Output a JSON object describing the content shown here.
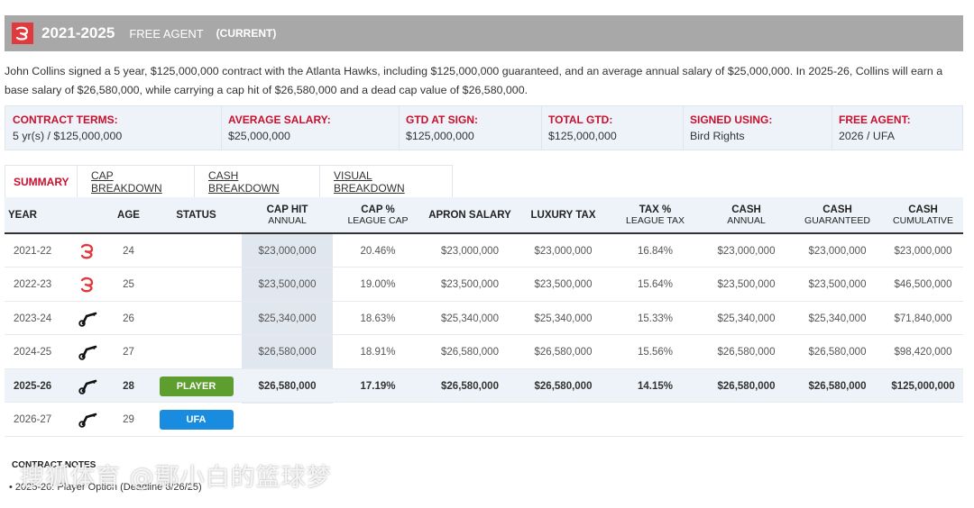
{
  "header": {
    "years": "2021-2025",
    "free_agent": "FREE AGENT",
    "current": "(CURRENT)",
    "logo_icon": "atlanta-hawks-logo"
  },
  "description": "John Collins signed a 5 year, $125,000,000 contract with the Atlanta Hawks, including $125,000,000 guaranteed, and an average annual salary of $25,000,000. In 2025-26, Collins will earn a base salary of $26,580,000, while carrying a cap hit of $26,580,000 and a dead cap value of $26,580,000.",
  "terms": [
    {
      "label": "CONTRACT TERMS:",
      "value": "5 yr(s) / $125,000,000"
    },
    {
      "label": "AVERAGE SALARY:",
      "value": "$25,000,000"
    },
    {
      "label": "GTD AT SIGN:",
      "value": "$125,000,000"
    },
    {
      "label": "TOTAL GTD:",
      "value": "$125,000,000"
    },
    {
      "label": "SIGNED USING:",
      "value": "Bird Rights"
    },
    {
      "label": "FREE AGENT:",
      "value": "2026 / UFA"
    }
  ],
  "tabs": [
    "SUMMARY",
    "CAP BREAKDOWN",
    "CASH BREAKDOWN",
    "VISUAL BREAKDOWN"
  ],
  "table": {
    "headers": [
      {
        "main": "YEAR",
        "sub": ""
      },
      {
        "main": "AGE",
        "sub": ""
      },
      {
        "main": "STATUS",
        "sub": ""
      },
      {
        "main": "CAP HIT",
        "sub": "ANNUAL"
      },
      {
        "main": "CAP %",
        "sub": "LEAGUE CAP"
      },
      {
        "main": "APRON SALARY",
        "sub": ""
      },
      {
        "main": "LUXURY TAX",
        "sub": ""
      },
      {
        "main": "TAX %",
        "sub": "LEAGUE TAX"
      },
      {
        "main": "CASH",
        "sub": "ANNUAL"
      },
      {
        "main": "CASH",
        "sub": "GUARANTEED"
      },
      {
        "main": "CASH",
        "sub": "CUMULATIVE"
      }
    ],
    "rows": [
      {
        "year": "2021-22",
        "team_icon": "hawks-icon",
        "age": "24",
        "status": "",
        "cap_hit": "$23,000,000",
        "cap_pct": "20.46%",
        "apron": "$23,000,000",
        "lux_tax": "$23,000,000",
        "tax_pct": "16.84%",
        "cash_annual": "$23,000,000",
        "cash_gtd": "$23,000,000",
        "cash_cum": "$23,000,000"
      },
      {
        "year": "2022-23",
        "team_icon": "hawks-icon",
        "age": "25",
        "status": "",
        "cap_hit": "$23,500,000",
        "cap_pct": "19.00%",
        "apron": "$23,500,000",
        "lux_tax": "$23,500,000",
        "tax_pct": "15.64%",
        "cash_annual": "$23,500,000",
        "cash_gtd": "$23,500,000",
        "cash_cum": "$46,500,000"
      },
      {
        "year": "2023-24",
        "team_icon": "jazz-icon",
        "age": "26",
        "status": "",
        "cap_hit": "$25,340,000",
        "cap_pct": "18.63%",
        "apron": "$25,340,000",
        "lux_tax": "$25,340,000",
        "tax_pct": "15.33%",
        "cash_annual": "$25,340,000",
        "cash_gtd": "$25,340,000",
        "cash_cum": "$71,840,000"
      },
      {
        "year": "2024-25",
        "team_icon": "jazz-icon",
        "age": "27",
        "status": "",
        "cap_hit": "$26,580,000",
        "cap_pct": "18.91%",
        "apron": "$26,580,000",
        "lux_tax": "$26,580,000",
        "tax_pct": "15.56%",
        "cash_annual": "$26,580,000",
        "cash_gtd": "$26,580,000",
        "cash_cum": "$98,420,000"
      },
      {
        "year": "2025-26",
        "team_icon": "jazz-icon",
        "age": "28",
        "status": "PLAYER",
        "status_color": "#5e9e2f",
        "cap_hit": "$26,580,000",
        "cap_pct": "17.19%",
        "apron": "$26,580,000",
        "lux_tax": "$26,580,000",
        "tax_pct": "14.15%",
        "cash_annual": "$26,580,000",
        "cash_gtd": "$26,580,000",
        "cash_cum": "$125,000,000",
        "current": true
      },
      {
        "year": "2026-27",
        "team_icon": "jazz-icon",
        "age": "29",
        "status": "UFA",
        "status_color": "#1a8ce0",
        "cap_hit": "",
        "cap_pct": "",
        "apron": "",
        "lux_tax": "",
        "tax_pct": "",
        "cash_annual": "",
        "cash_gtd": "",
        "cash_cum": ""
      }
    ]
  },
  "notes": {
    "title": "CONTRACT NOTES",
    "item": "2025-26: Player Option (Deadline 6/26/25)"
  },
  "watermark": "搜狐体育 @鄢小白的篮球梦",
  "colors": {
    "accent": "#c8102e",
    "header_bar": "#a8a8a8",
    "player_badge": "#5e9e2f",
    "ufa_badge": "#1a8ce0"
  }
}
